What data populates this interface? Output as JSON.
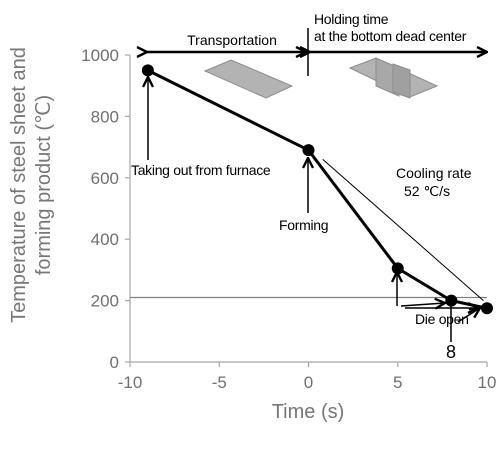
{
  "chart_data": {
    "type": "line",
    "xlabel": "Time (s)",
    "ylabel": [
      "Temperature of steel sheet and",
      "forming product (℃)"
    ],
    "xlim": [
      -10,
      10
    ],
    "ylim": [
      0,
      1000
    ],
    "xticks": [
      -10,
      -5,
      0,
      5,
      10
    ],
    "yticks": [
      0,
      200,
      400,
      600,
      800,
      1000
    ],
    "grid": false,
    "series": [
      {
        "x": [
          -9,
          0,
          5,
          8,
          10
        ],
        "y": [
          950,
          690,
          305,
          200,
          175
        ]
      }
    ],
    "reference_line": {
      "y": 210
    },
    "cooling_rate_line": {
      "x": [
        0.8,
        9.8
      ],
      "y": [
        660,
        200
      ]
    },
    "extra_tick_label": {
      "x": 8,
      "text": "8"
    },
    "annotations": {
      "transportation": "Transportation",
      "holding_line1": "Holding time",
      "holding_line2": "at the bottom dead center",
      "taking_out": "Taking out from furnace",
      "forming": "Forming",
      "cooling_rate_line1": "Cooling rate",
      "cooling_rate_line2": "52 ℃/s",
      "die_open": "Die open"
    },
    "colors": {
      "series": "#000000",
      "axis": "#a6a6a6",
      "reference": "#808080",
      "part_fill": "#b3b3b3",
      "part_stroke": "#8c8c8c"
    }
  }
}
